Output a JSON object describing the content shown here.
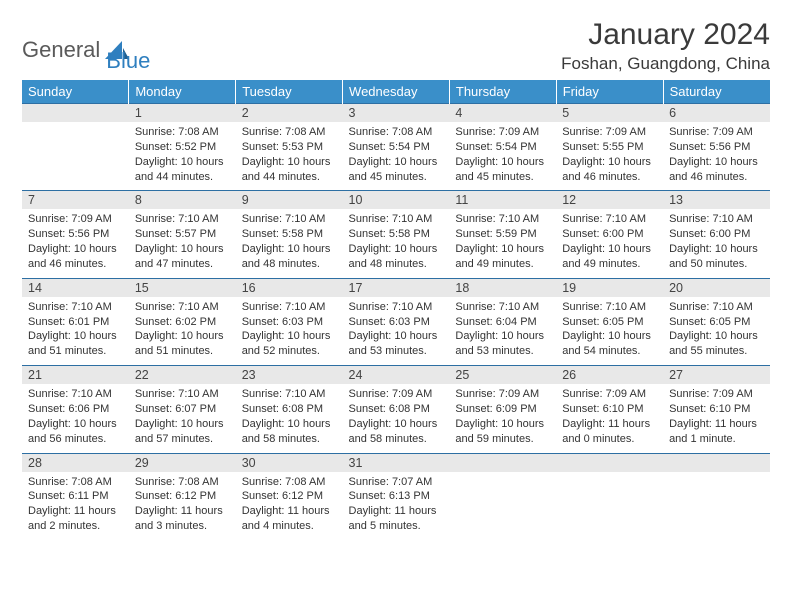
{
  "brand": {
    "part1": "General",
    "part2": "Blue"
  },
  "header": {
    "month_title": "January 2024",
    "location": "Foshan, Guangdong, China"
  },
  "colors": {
    "header_bg": "#3a8fc9",
    "header_text": "#ffffff",
    "daynum_bg": "#e8e8e8",
    "divider": "#2d6fa3",
    "brand_blue": "#2f7fbf",
    "text_gray": "#5a5a5a"
  },
  "dow": [
    "Sunday",
    "Monday",
    "Tuesday",
    "Wednesday",
    "Thursday",
    "Friday",
    "Saturday"
  ],
  "weeks": [
    [
      null,
      {
        "d": "1",
        "l1": "Sunrise: 7:08 AM",
        "l2": "Sunset: 5:52 PM",
        "l3": "Daylight: 10 hours",
        "l4": "and 44 minutes."
      },
      {
        "d": "2",
        "l1": "Sunrise: 7:08 AM",
        "l2": "Sunset: 5:53 PM",
        "l3": "Daylight: 10 hours",
        "l4": "and 44 minutes."
      },
      {
        "d": "3",
        "l1": "Sunrise: 7:08 AM",
        "l2": "Sunset: 5:54 PM",
        "l3": "Daylight: 10 hours",
        "l4": "and 45 minutes."
      },
      {
        "d": "4",
        "l1": "Sunrise: 7:09 AM",
        "l2": "Sunset: 5:54 PM",
        "l3": "Daylight: 10 hours",
        "l4": "and 45 minutes."
      },
      {
        "d": "5",
        "l1": "Sunrise: 7:09 AM",
        "l2": "Sunset: 5:55 PM",
        "l3": "Daylight: 10 hours",
        "l4": "and 46 minutes."
      },
      {
        "d": "6",
        "l1": "Sunrise: 7:09 AM",
        "l2": "Sunset: 5:56 PM",
        "l3": "Daylight: 10 hours",
        "l4": "and 46 minutes."
      }
    ],
    [
      {
        "d": "7",
        "l1": "Sunrise: 7:09 AM",
        "l2": "Sunset: 5:56 PM",
        "l3": "Daylight: 10 hours",
        "l4": "and 46 minutes."
      },
      {
        "d": "8",
        "l1": "Sunrise: 7:10 AM",
        "l2": "Sunset: 5:57 PM",
        "l3": "Daylight: 10 hours",
        "l4": "and 47 minutes."
      },
      {
        "d": "9",
        "l1": "Sunrise: 7:10 AM",
        "l2": "Sunset: 5:58 PM",
        "l3": "Daylight: 10 hours",
        "l4": "and 48 minutes."
      },
      {
        "d": "10",
        "l1": "Sunrise: 7:10 AM",
        "l2": "Sunset: 5:58 PM",
        "l3": "Daylight: 10 hours",
        "l4": "and 48 minutes."
      },
      {
        "d": "11",
        "l1": "Sunrise: 7:10 AM",
        "l2": "Sunset: 5:59 PM",
        "l3": "Daylight: 10 hours",
        "l4": "and 49 minutes."
      },
      {
        "d": "12",
        "l1": "Sunrise: 7:10 AM",
        "l2": "Sunset: 6:00 PM",
        "l3": "Daylight: 10 hours",
        "l4": "and 49 minutes."
      },
      {
        "d": "13",
        "l1": "Sunrise: 7:10 AM",
        "l2": "Sunset: 6:00 PM",
        "l3": "Daylight: 10 hours",
        "l4": "and 50 minutes."
      }
    ],
    [
      {
        "d": "14",
        "l1": "Sunrise: 7:10 AM",
        "l2": "Sunset: 6:01 PM",
        "l3": "Daylight: 10 hours",
        "l4": "and 51 minutes."
      },
      {
        "d": "15",
        "l1": "Sunrise: 7:10 AM",
        "l2": "Sunset: 6:02 PM",
        "l3": "Daylight: 10 hours",
        "l4": "and 51 minutes."
      },
      {
        "d": "16",
        "l1": "Sunrise: 7:10 AM",
        "l2": "Sunset: 6:03 PM",
        "l3": "Daylight: 10 hours",
        "l4": "and 52 minutes."
      },
      {
        "d": "17",
        "l1": "Sunrise: 7:10 AM",
        "l2": "Sunset: 6:03 PM",
        "l3": "Daylight: 10 hours",
        "l4": "and 53 minutes."
      },
      {
        "d": "18",
        "l1": "Sunrise: 7:10 AM",
        "l2": "Sunset: 6:04 PM",
        "l3": "Daylight: 10 hours",
        "l4": "and 53 minutes."
      },
      {
        "d": "19",
        "l1": "Sunrise: 7:10 AM",
        "l2": "Sunset: 6:05 PM",
        "l3": "Daylight: 10 hours",
        "l4": "and 54 minutes."
      },
      {
        "d": "20",
        "l1": "Sunrise: 7:10 AM",
        "l2": "Sunset: 6:05 PM",
        "l3": "Daylight: 10 hours",
        "l4": "and 55 minutes."
      }
    ],
    [
      {
        "d": "21",
        "l1": "Sunrise: 7:10 AM",
        "l2": "Sunset: 6:06 PM",
        "l3": "Daylight: 10 hours",
        "l4": "and 56 minutes."
      },
      {
        "d": "22",
        "l1": "Sunrise: 7:10 AM",
        "l2": "Sunset: 6:07 PM",
        "l3": "Daylight: 10 hours",
        "l4": "and 57 minutes."
      },
      {
        "d": "23",
        "l1": "Sunrise: 7:10 AM",
        "l2": "Sunset: 6:08 PM",
        "l3": "Daylight: 10 hours",
        "l4": "and 58 minutes."
      },
      {
        "d": "24",
        "l1": "Sunrise: 7:09 AM",
        "l2": "Sunset: 6:08 PM",
        "l3": "Daylight: 10 hours",
        "l4": "and 58 minutes."
      },
      {
        "d": "25",
        "l1": "Sunrise: 7:09 AM",
        "l2": "Sunset: 6:09 PM",
        "l3": "Daylight: 10 hours",
        "l4": "and 59 minutes."
      },
      {
        "d": "26",
        "l1": "Sunrise: 7:09 AM",
        "l2": "Sunset: 6:10 PM",
        "l3": "Daylight: 11 hours",
        "l4": "and 0 minutes."
      },
      {
        "d": "27",
        "l1": "Sunrise: 7:09 AM",
        "l2": "Sunset: 6:10 PM",
        "l3": "Daylight: 11 hours",
        "l4": "and 1 minute."
      }
    ],
    [
      {
        "d": "28",
        "l1": "Sunrise: 7:08 AM",
        "l2": "Sunset: 6:11 PM",
        "l3": "Daylight: 11 hours",
        "l4": "and 2 minutes."
      },
      {
        "d": "29",
        "l1": "Sunrise: 7:08 AM",
        "l2": "Sunset: 6:12 PM",
        "l3": "Daylight: 11 hours",
        "l4": "and 3 minutes."
      },
      {
        "d": "30",
        "l1": "Sunrise: 7:08 AM",
        "l2": "Sunset: 6:12 PM",
        "l3": "Daylight: 11 hours",
        "l4": "and 4 minutes."
      },
      {
        "d": "31",
        "l1": "Sunrise: 7:07 AM",
        "l2": "Sunset: 6:13 PM",
        "l3": "Daylight: 11 hours",
        "l4": "and 5 minutes."
      },
      null,
      null,
      null
    ]
  ]
}
